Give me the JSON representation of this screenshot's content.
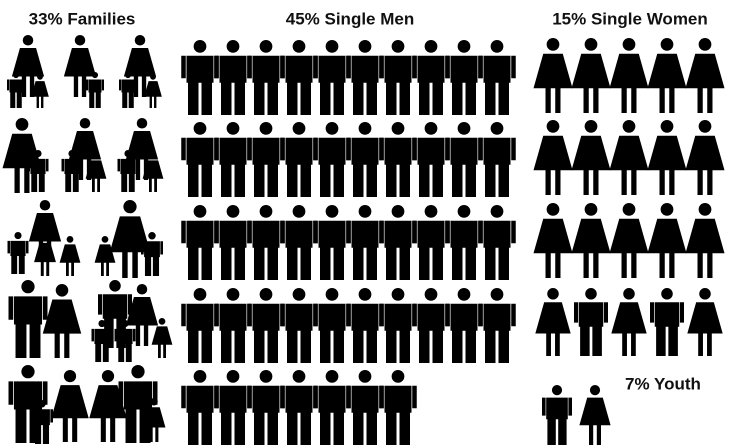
{
  "chart_data": {
    "type": "pictograph",
    "categories": [
      "Families",
      "Single Men",
      "Single Women",
      "Youth"
    ],
    "values": [
      33,
      45,
      15,
      7
    ],
    "value_labels": [
      "33% Families",
      "45% Single Men",
      "15% Single Women",
      "7% Youth"
    ],
    "color": "#000000"
  }
}
